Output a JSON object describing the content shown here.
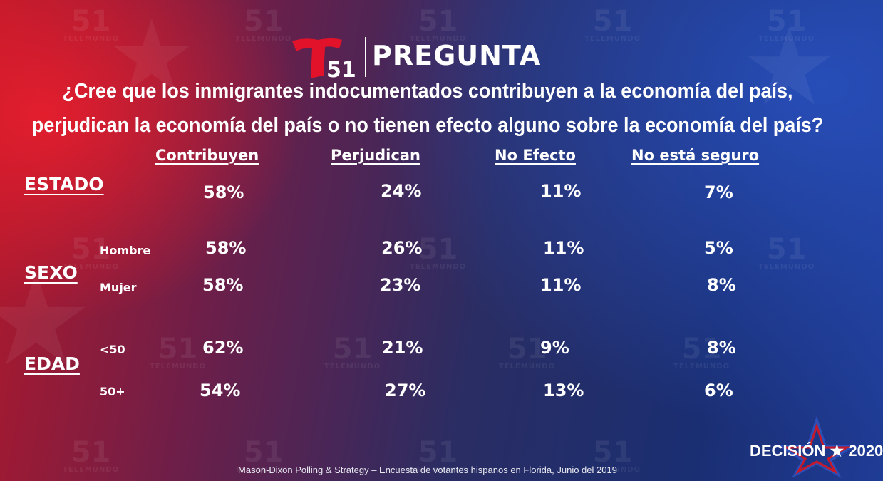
{
  "header": {
    "channel_number": "51",
    "title": "PREGUNTA",
    "watermark_brand": "TELEMUNDO"
  },
  "question": {
    "line1": "¿Cree que los inmigrantes indocumentados contribuyen a la economía del país,",
    "line2": "perjudican la economía del país o no tienen efecto alguno sobre la economía del país?"
  },
  "columns": [
    "Contribuyen",
    "Perjudican",
    "No Efecto",
    "No está seguro"
  ],
  "groups": {
    "estado": {
      "label": "ESTADO",
      "rows": [
        {
          "label": "",
          "values": [
            "58%",
            "24%",
            "11%",
            "7%"
          ]
        }
      ]
    },
    "sexo": {
      "label": "SEXO",
      "rows": [
        {
          "label": "Hombre",
          "values": [
            "58%",
            "26%",
            "11%",
            "5%"
          ]
        },
        {
          "label": "Mujer",
          "values": [
            "58%",
            "23%",
            "11%",
            "8%"
          ]
        }
      ]
    },
    "edad": {
      "label": "EDAD",
      "rows": [
        {
          "label": "<50",
          "values": [
            "62%",
            "21%",
            "9%",
            "8%"
          ]
        },
        {
          "label": "50+",
          "values": [
            "54%",
            "27%",
            "13%",
            "6%"
          ]
        }
      ]
    }
  },
  "footer": "Mason-Dixon  Polling & Strategy – Encuesta de votantes hispanos en Florida, Junio del 2019",
  "badge": {
    "word": "DECISIÓN",
    "star": "★",
    "year": "2020"
  },
  "colors": {
    "logo_red": "#e3122b",
    "brand_blue": "#1f3c96",
    "brand_red": "#c41a2c"
  }
}
